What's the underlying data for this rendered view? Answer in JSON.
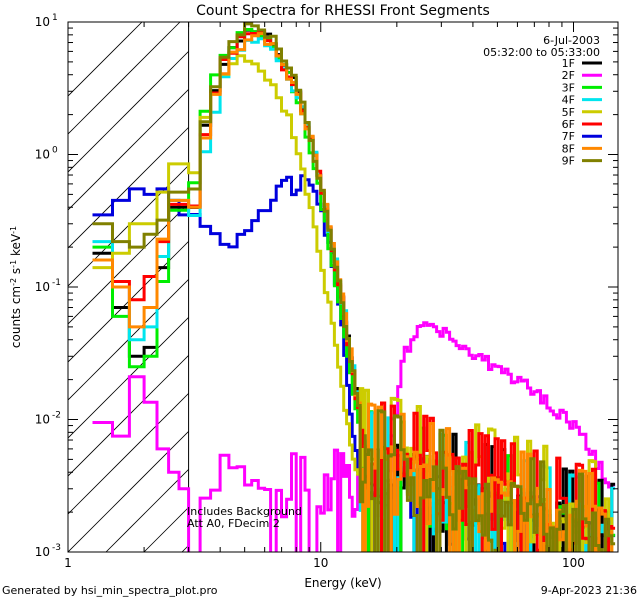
{
  "chart_data": {
    "type": "line",
    "title": "Count Spectra for RHESSI Front Segments",
    "xlabel": "Energy (keV)",
    "ylabel_parts": [
      "counts cm",
      "-2",
      " s",
      "-1",
      " keV",
      "-1"
    ],
    "x_scale": "log",
    "y_scale": "log",
    "xlim": [
      1.0,
      150.0
    ],
    "ylim": [
      0.001,
      10.0
    ],
    "x_ticks": [
      {
        "value": 1,
        "label": "1"
      },
      {
        "value": 10,
        "label": "10"
      },
      {
        "value": 100,
        "label": "100"
      }
    ],
    "y_ticks": [
      {
        "value": 0.001,
        "base": "10",
        "exp": "-3"
      },
      {
        "value": 0.01,
        "base": "10",
        "exp": "-2"
      },
      {
        "value": 0.1,
        "base": "10",
        "exp": "-1"
      },
      {
        "value": 1,
        "base": "10",
        "exp": "0"
      },
      {
        "value": 10,
        "base": "10",
        "exp": "1"
      }
    ],
    "attenuator_cutoff_keV": 3.0,
    "date": "6-Jul-2003",
    "time_range": "05:32:00 to 05:33:00",
    "annotation_lines": [
      "Includes Background",
      "Att A0, FDecim 2"
    ],
    "legend_position": "top-right",
    "series": [
      {
        "name": "1F",
        "color": "#000000",
        "peak": 9.0,
        "low": [
          0.18,
          0.07,
          0.03,
          0.035,
          0.14,
          0.4
        ],
        "shift": 1.0,
        "tail": 0.003
      },
      {
        "name": "2F",
        "color": "#ff00ff",
        "special": "2F"
      },
      {
        "name": "3F",
        "color": "#00ee00",
        "peak": 9.2,
        "low": [
          0.2,
          0.06,
          0.025,
          0.03,
          0.11,
          0.38
        ],
        "shift": 0.97,
        "tail": 0.0028
      },
      {
        "name": "4F",
        "color": "#00e5ee",
        "peak": 7.5,
        "low": [
          0.22,
          0.1,
          0.04,
          0.05,
          0.17,
          0.45
        ],
        "shift": 1.02,
        "tail": 0.0028
      },
      {
        "name": "5F",
        "color": "#cccc00",
        "peak": 5.5,
        "low": [
          0.14,
          0.18,
          0.3,
          0.3,
          0.52,
          0.85
        ],
        "shift": 0.92,
        "tail": 0.004
      },
      {
        "name": "6F",
        "color": "#ff0000",
        "peak": 8.6,
        "low": [
          0.16,
          0.11,
          0.08,
          0.12,
          0.22,
          0.42
        ],
        "shift": 1.0,
        "tail": 0.0035
      },
      {
        "name": "7F",
        "color": "#0000dd",
        "special": "7F"
      },
      {
        "name": "8F",
        "color": "#ff8800",
        "peak": 8.2,
        "low": [
          0.16,
          0.1,
          0.05,
          0.07,
          0.23,
          0.45
        ],
        "shift": 1.01,
        "tail": 0.0032
      },
      {
        "name": "9F",
        "color": "#808000",
        "peak": 9.8,
        "low": [
          0.3,
          0.22,
          0.2,
          0.25,
          0.32,
          0.52
        ],
        "shift": 0.99,
        "tail": 0.003
      }
    ],
    "special_series": {
      "2F": {
        "low": [
          0.0095,
          0.0075,
          0.021,
          0.0135,
          0.006,
          0.004,
          0.003,
          0.0024,
          0.0026,
          0.004,
          0.003,
          0.002,
          0.0026,
          0.004,
          0.0024,
          0.002
        ],
        "hump_peak_keV": 27,
        "hump_peak": 0.052,
        "high_end": 0.0027
      },
      "7F": {
        "low": [
          0.35,
          0.45,
          0.55,
          0.5,
          0.55,
          0.45,
          0.35
        ],
        "dip_keV": 4.2,
        "dip": 0.2,
        "peak_keV": 7.3,
        "peak": 0.7,
        "tail": 0.0025
      }
    }
  },
  "footer": {
    "left": "Generated by hsi_min_spectra_plot.pro",
    "right": "9-Apr-2023 21:36"
  }
}
